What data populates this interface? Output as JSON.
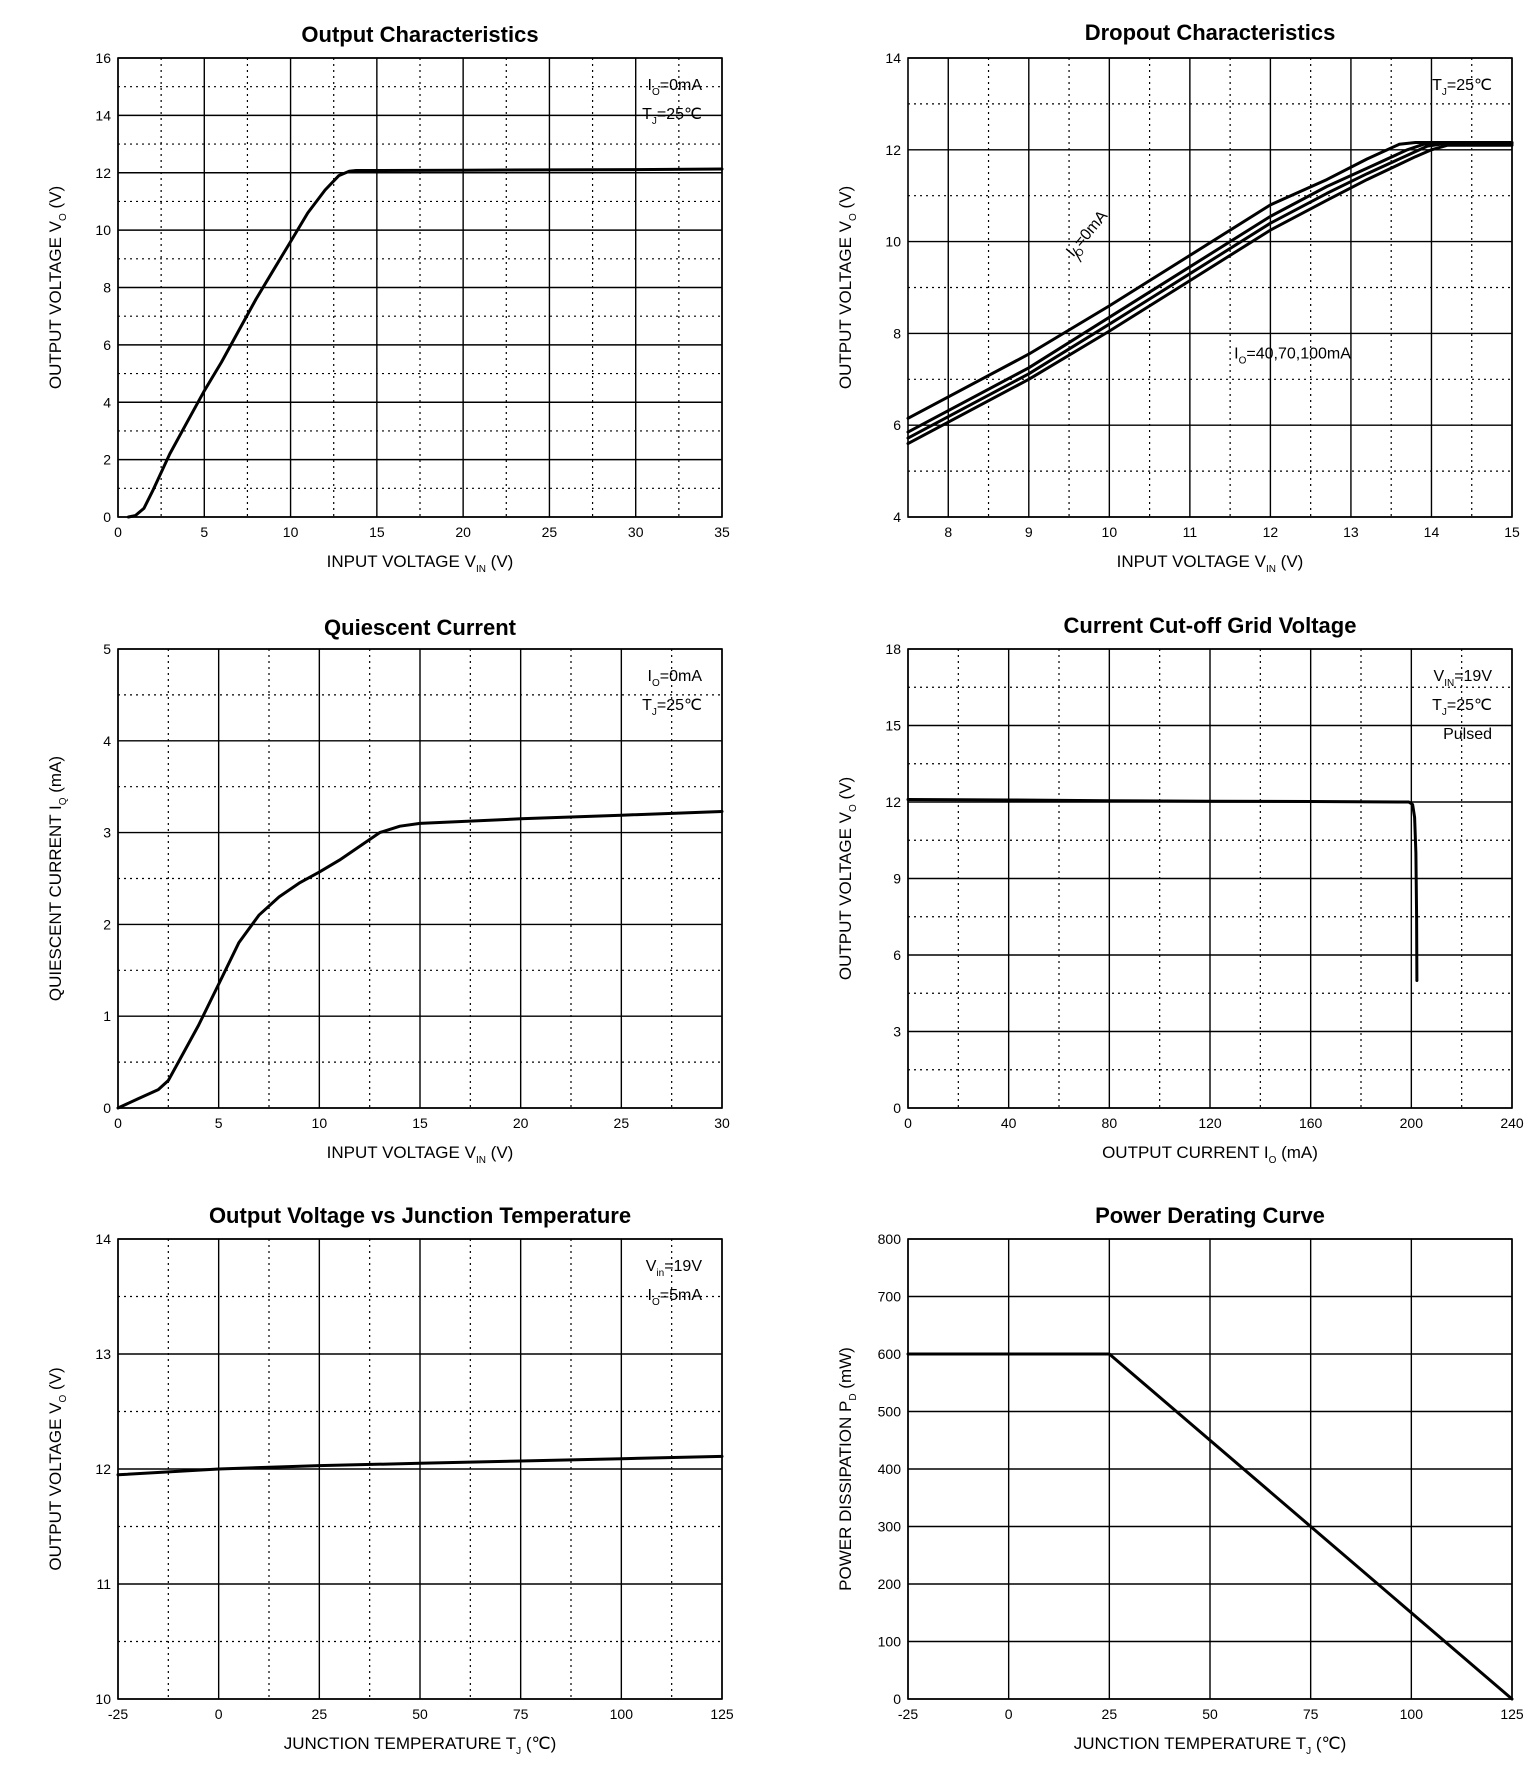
{
  "chart_data": [
    {
      "type": "line",
      "title": "Output  Characteristics",
      "xlabel": {
        "main": "INPUT VOLTAGE",
        "sym": "V",
        "sub": "IN",
        "unit": "(V)"
      },
      "ylabel": {
        "main": "OUTPUT VOLTAGE",
        "sym": "V",
        "sub": "O",
        "unit": "(V)"
      },
      "xlim": [
        0,
        35
      ],
      "ylim": [
        0,
        16
      ],
      "xticks": [
        0,
        5,
        10,
        15,
        20,
        25,
        30,
        35
      ],
      "yticks": [
        0,
        2,
        4,
        6,
        8,
        10,
        12,
        14,
        16
      ],
      "xminor": [
        2.5,
        7.5,
        12.5,
        17.5,
        22.5,
        27.5,
        32.5
      ],
      "yminor": [
        1,
        3,
        5,
        7,
        9,
        11,
        13,
        15
      ],
      "annotations": [
        {
          "sym": "I",
          "sub": "O",
          "rest": "=0mA"
        },
        {
          "sym": "T",
          "sub": "J",
          "rest": "=25℃"
        }
      ],
      "series": [
        {
          "name": "Vo",
          "x": [
            0.6,
            1.0,
            1.5,
            2.0,
            3.0,
            4.0,
            5.0,
            6.0,
            7.0,
            8.0,
            9.0,
            10.0,
            11.0,
            12.0,
            12.8,
            13.4,
            13.8,
            14.0,
            15,
            20,
            25,
            30,
            35
          ],
          "y": [
            0.0,
            0.05,
            0.3,
            0.9,
            2.2,
            3.3,
            4.4,
            5.4,
            6.5,
            7.6,
            8.6,
            9.6,
            10.6,
            11.4,
            11.9,
            12.05,
            12.08,
            12.08,
            12.08,
            12.09,
            12.1,
            12.11,
            12.13
          ]
        }
      ]
    },
    {
      "type": "line",
      "title": "Dropout Characteristics",
      "xlabel": {
        "main": "INPUT VOLTAGE",
        "sym": "V",
        "sub": "IN",
        "unit": "(V)"
      },
      "ylabel": {
        "main": "OUTPUT VOLTAGE",
        "sym": "V",
        "sub": "O",
        "unit": "(V)"
      },
      "xlim": [
        7.5,
        15
      ],
      "ylim": [
        4,
        14
      ],
      "xticks": [
        8,
        9,
        10,
        11,
        12,
        13,
        14,
        15
      ],
      "yticks": [
        4,
        6,
        8,
        10,
        12,
        14
      ],
      "xminor": [
        8.5,
        9.5,
        10.5,
        11.5,
        12.5,
        13.5,
        14.5
      ],
      "yminor": [
        5,
        7,
        9,
        11,
        13
      ],
      "annotations": [
        {
          "sym": "T",
          "sub": "J",
          "rest": "=25℃"
        }
      ],
      "curve_labels": [
        {
          "sym": "I",
          "sub": "O",
          "rest": "=0mA",
          "x": 9.55,
          "y": 9.65,
          "rotate": -50
        },
        {
          "sym": "I",
          "sub": "O",
          "rest": "=40,70,100mA",
          "x": 11.55,
          "y": 7.45,
          "rotate": 0
        }
      ],
      "series": [
        {
          "name": "Io=0mA",
          "x": [
            7.5,
            9,
            10,
            11,
            12,
            12.7,
            13.2,
            13.6,
            13.8,
            14,
            15
          ],
          "y": [
            6.15,
            7.55,
            8.6,
            9.7,
            10.8,
            11.35,
            11.8,
            12.12,
            12.16,
            12.16,
            12.16
          ]
        },
        {
          "name": "Io=40mA",
          "x": [
            7.5,
            9,
            10,
            11,
            12,
            12.7,
            13.2,
            13.7,
            13.9,
            14.1,
            15
          ],
          "y": [
            5.85,
            7.25,
            8.35,
            9.45,
            10.55,
            11.2,
            11.6,
            12.0,
            12.12,
            12.15,
            12.15
          ]
        },
        {
          "name": "Io=70mA",
          "x": [
            7.5,
            9,
            10,
            11,
            12,
            12.7,
            13.2,
            13.75,
            13.95,
            14.15,
            15
          ],
          "y": [
            5.72,
            7.12,
            8.2,
            9.3,
            10.4,
            11.05,
            11.48,
            11.92,
            12.08,
            12.13,
            12.13
          ]
        },
        {
          "name": "Io=100mA",
          "x": [
            7.5,
            9,
            10,
            11,
            12,
            12.7,
            13.2,
            13.8,
            14.0,
            14.2,
            15
          ],
          "y": [
            5.6,
            7.0,
            8.05,
            9.15,
            10.25,
            10.9,
            11.35,
            11.85,
            12.0,
            12.1,
            12.1
          ]
        }
      ]
    },
    {
      "type": "line",
      "title": "Quiescent Current",
      "xlabel": {
        "main": "INPUT VOLTAGE",
        "sym": "V",
        "sub": "IN",
        "unit": "(V)"
      },
      "ylabel": {
        "main": "QUIESCENT CURRENT",
        "sym": "I",
        "sub": "Q",
        "unit": "(mA)"
      },
      "xlim": [
        0,
        30
      ],
      "ylim": [
        0,
        5
      ],
      "xticks": [
        0,
        5,
        10,
        15,
        20,
        25,
        30
      ],
      "yticks": [
        0,
        1,
        2,
        3,
        4,
        5
      ],
      "xminor": [
        2.5,
        7.5,
        12.5,
        17.5,
        22.5,
        27.5
      ],
      "yminor": [
        0.5,
        1.5,
        2.5,
        3.5,
        4.5
      ],
      "annotations": [
        {
          "sym": "I",
          "sub": "O",
          "rest": "=0mA"
        },
        {
          "sym": "T",
          "sub": "J",
          "rest": "=25℃"
        }
      ],
      "series": [
        {
          "name": "Iq",
          "x": [
            0,
            1,
            2,
            2.5,
            3,
            4,
            5,
            6,
            7,
            8,
            9,
            10,
            11,
            12,
            13,
            14,
            15,
            20,
            25,
            30
          ],
          "y": [
            0.0,
            0.1,
            0.2,
            0.3,
            0.5,
            0.9,
            1.35,
            1.8,
            2.1,
            2.3,
            2.45,
            2.57,
            2.7,
            2.85,
            3.0,
            3.07,
            3.1,
            3.15,
            3.19,
            3.23
          ]
        }
      ]
    },
    {
      "type": "line",
      "title": "Current  Cut-off Grid Voltage",
      "xlabel": {
        "main": "OUTPUT CURRENT",
        "sym": "I",
        "sub": "O",
        "unit": "(mA)"
      },
      "ylabel": {
        "main": "OUTPUT VOLTAGE",
        "sym": "V",
        "sub": "O",
        "unit": "(V)"
      },
      "xlim": [
        0,
        240
      ],
      "ylim": [
        0,
        18
      ],
      "xticks": [
        0,
        40,
        80,
        120,
        160,
        200,
        240
      ],
      "yticks": [
        0,
        3,
        6,
        9,
        12,
        15,
        18
      ],
      "xminor": [
        20,
        60,
        100,
        140,
        180,
        220
      ],
      "yminor": [
        1.5,
        4.5,
        7.5,
        10.5,
        13.5,
        16.5
      ],
      "annotations": [
        {
          "sym": "V",
          "sub": "IN",
          "rest": "=19V"
        },
        {
          "sym": "T",
          "sub": "J",
          "rest": "=25℃"
        },
        {
          "sym": "",
          "sub": "",
          "rest": "Pulsed"
        }
      ],
      "series": [
        {
          "name": "Vo",
          "x": [
            0,
            40,
            80,
            120,
            160,
            199,
            200.5,
            201.3,
            201.8,
            202.1,
            202.2
          ],
          "y": [
            12.1,
            12.08,
            12.05,
            12.03,
            12.02,
            12.0,
            11.9,
            11.4,
            10.0,
            7.5,
            5.0
          ]
        }
      ]
    },
    {
      "type": "line",
      "title": "Output Voltage vs Junction Temperature",
      "xlabel": {
        "main": "JUNCTION TEMPERATURE",
        "sym": "T",
        "sub": "J",
        "unit": "(℃)"
      },
      "ylabel": {
        "main": "OUTPUT VOLTAGE",
        "sym": "V",
        "sub": "O",
        "unit": "(V)"
      },
      "xlim": [
        -25,
        125
      ],
      "ylim": [
        10,
        14
      ],
      "xticks": [
        -25,
        0,
        25,
        50,
        75,
        100,
        125
      ],
      "yticks": [
        10,
        11,
        12,
        13,
        14
      ],
      "xminor": [
        -12.5,
        12.5,
        37.5,
        62.5,
        87.5,
        112.5
      ],
      "yminor": [
        10.5,
        11.5,
        12.5,
        13.5
      ],
      "annotations": [
        {
          "sym": "V",
          "sub": "in",
          "rest": "=19V"
        },
        {
          "sym": "I",
          "sub": "O",
          "rest": "=5mA"
        }
      ],
      "series": [
        {
          "name": "Vo",
          "x": [
            -25,
            0,
            25,
            50,
            75,
            100,
            125
          ],
          "y": [
            11.95,
            12.0,
            12.03,
            12.05,
            12.07,
            12.09,
            12.11
          ]
        }
      ]
    },
    {
      "type": "line",
      "title": "Power Derating Curve",
      "xlabel": {
        "main": "JUNCTION TEMPERATURE",
        "sym": "T",
        "sub": "J",
        "unit": "(℃)"
      },
      "ylabel": {
        "main": "POWER DISSIPATION",
        "sym": "P",
        "sub": "D",
        "unit": "(mW)"
      },
      "xlim": [
        -25,
        125
      ],
      "ylim": [
        0,
        800
      ],
      "xticks": [
        -25,
        0,
        25,
        50,
        75,
        100,
        125
      ],
      "yticks": [
        0,
        100,
        200,
        300,
        400,
        500,
        600,
        700,
        800
      ],
      "xminor": [],
      "yminor": [],
      "annotations": [],
      "series": [
        {
          "name": "Pd",
          "x": [
            -25,
            25,
            125
          ],
          "y": [
            600,
            600,
            0
          ]
        }
      ]
    }
  ]
}
